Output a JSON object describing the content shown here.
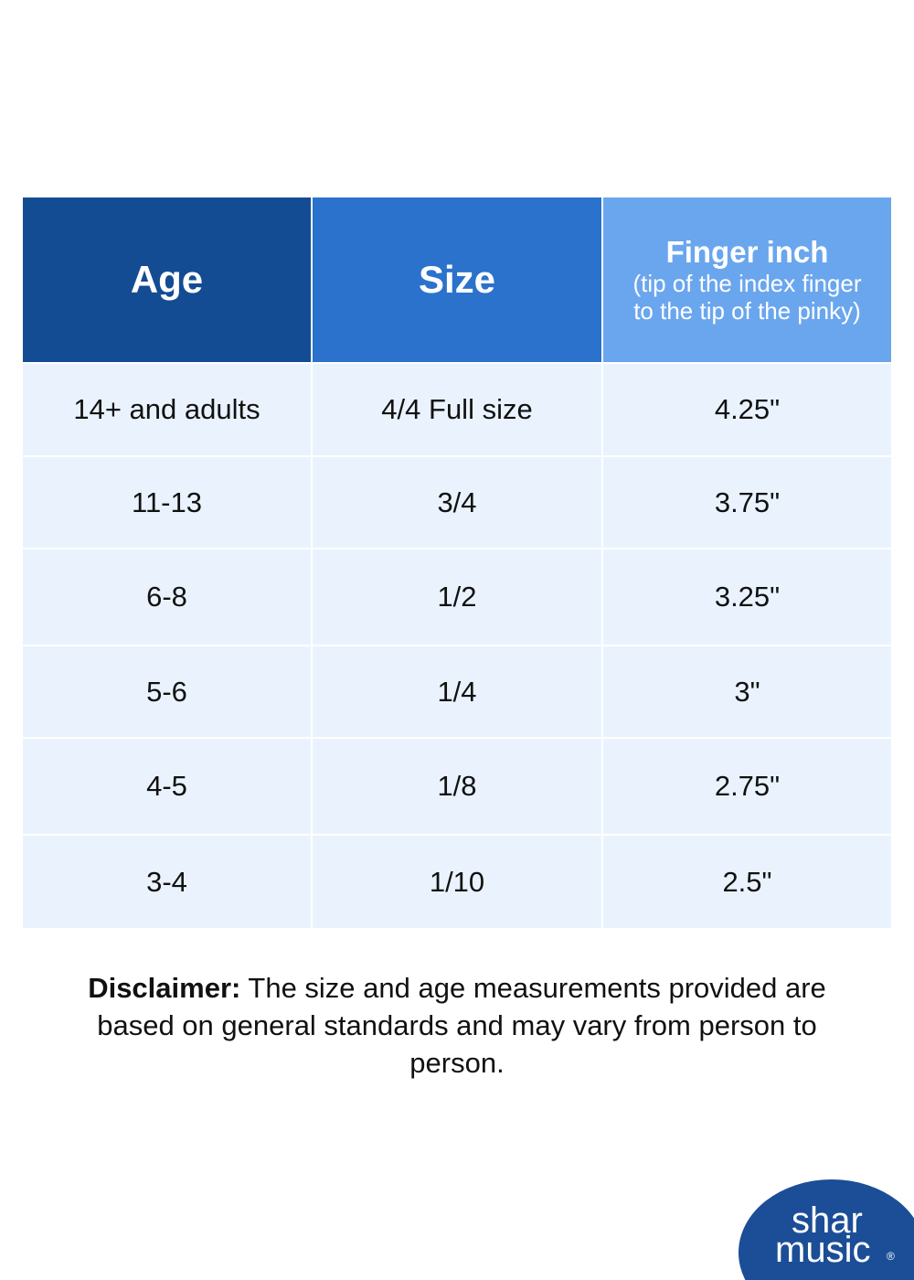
{
  "table": {
    "header": [
      {
        "title": "Age"
      },
      {
        "title": "Size"
      },
      {
        "title": "Finger inch",
        "subtitle": "(tip of the index finger to the tip of the pinky)"
      }
    ],
    "rows": [
      [
        "14+ and adults",
        "4/4 Full size",
        "4.25\""
      ],
      [
        "11-13",
        "3/4",
        "3.75\""
      ],
      [
        "6-8",
        "1/2",
        "3.25\""
      ],
      [
        "5-6",
        "1/4",
        "3\""
      ],
      [
        "4-5",
        "1/8",
        "2.75\""
      ],
      [
        "3-4",
        "1/10",
        "2.5\""
      ]
    ]
  },
  "disclaimer": {
    "label": "Disclaimer:",
    "text": "The size and age measurements provided are based on general standards and may vary from person to person."
  },
  "logo": {
    "line1": "shar",
    "line2": "music",
    "mark": "®"
  }
}
